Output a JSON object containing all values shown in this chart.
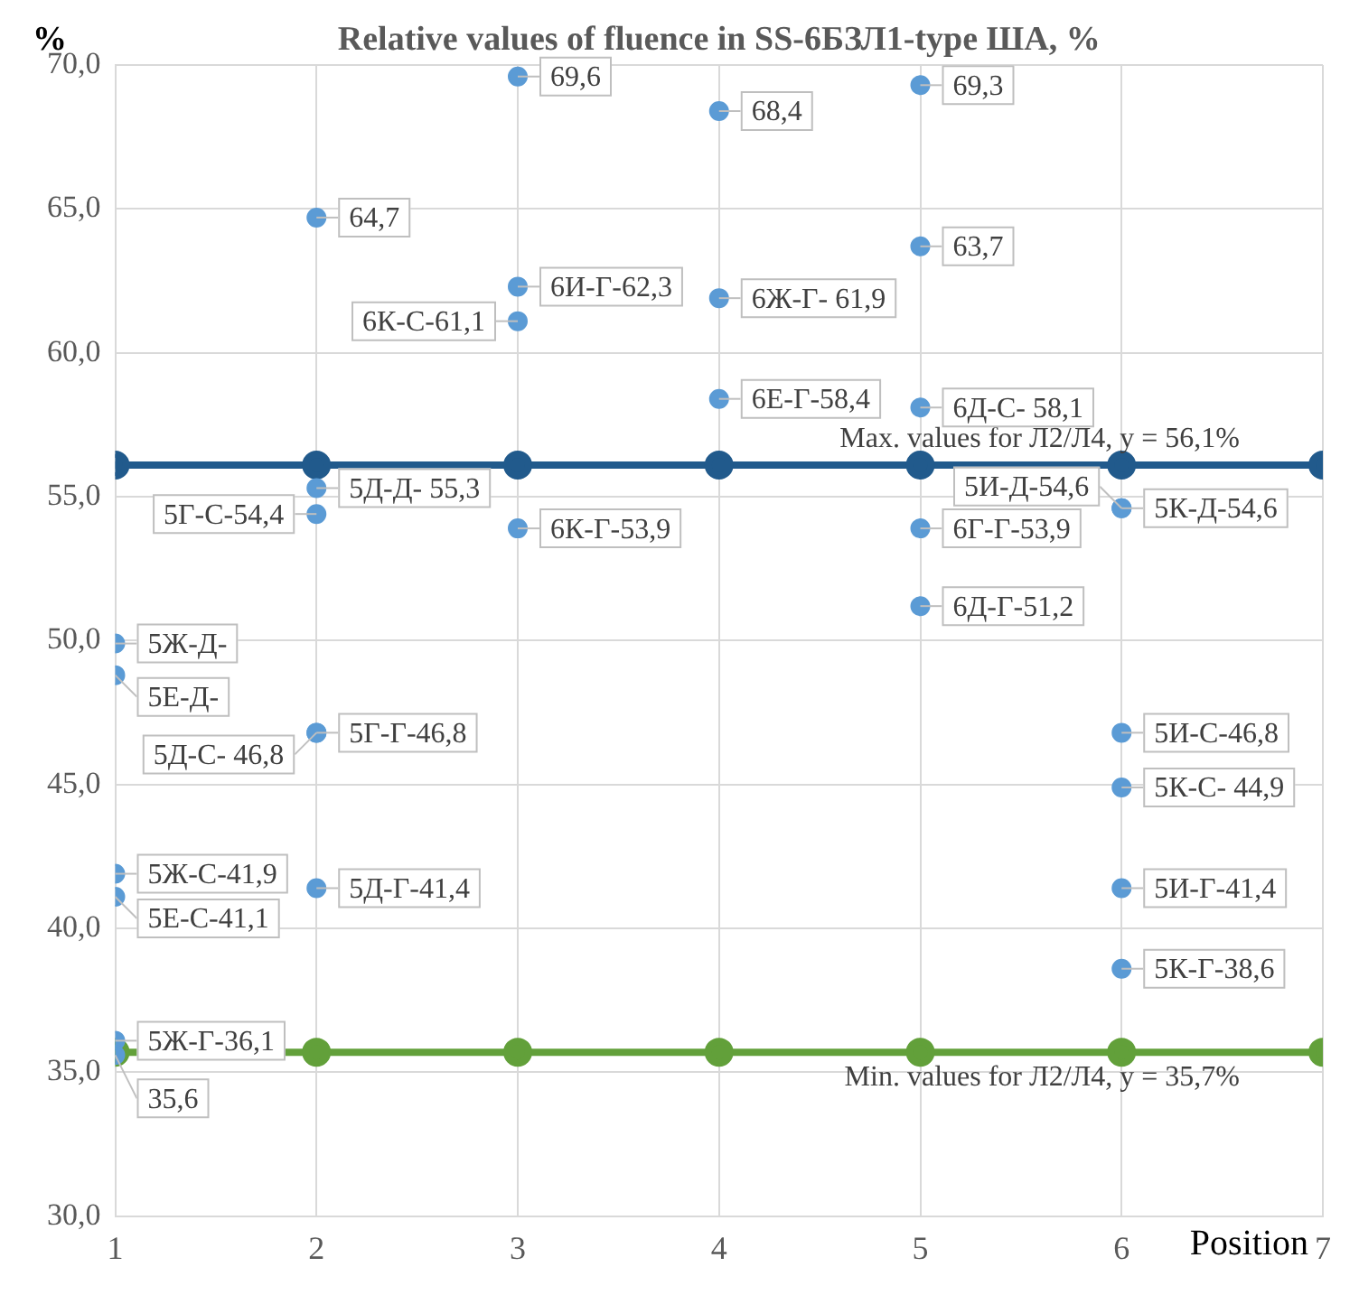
{
  "chart_data": {
    "type": "scatter",
    "title": "Relative values of fluence in SS-6БЗЛ1-type ША, %",
    "xlabel": "Position",
    "ylabel": "%",
    "xlim": [
      1,
      7
    ],
    "xticks": [
      1,
      2,
      3,
      4,
      5,
      6,
      7
    ],
    "ylim": [
      30,
      70
    ],
    "yticks": [
      {
        "value": 30,
        "label": "30,0"
      },
      {
        "value": 35,
        "label": "35,0"
      },
      {
        "value": 40,
        "label": "40,0"
      },
      {
        "value": 45,
        "label": "45,0"
      },
      {
        "value": 50,
        "label": "50,0"
      },
      {
        "value": 55,
        "label": "55,0"
      },
      {
        "value": 60,
        "label": "60,0"
      },
      {
        "value": 65,
        "label": "65,0"
      },
      {
        "value": 70,
        "label": "70,0"
      }
    ],
    "grid": true,
    "legend": false,
    "marker": "circle",
    "annotations": [
      {
        "text": "5Ж-Д-",
        "x": 1,
        "y": 49.9
      },
      {
        "text": "5Е-Д-",
        "x": 1,
        "y": 48.8
      }
    ],
    "series": [
      {
        "type": "scatter",
        "color": "#5b9bd5",
        "x": [
          1,
          1,
          1,
          1,
          1,
          1,
          2,
          2,
          2,
          2,
          2,
          2,
          3,
          3,
          3,
          3,
          4,
          4,
          4,
          5,
          5,
          5,
          5,
          5,
          6,
          6,
          6,
          6,
          6,
          6
        ],
        "values": [
          49.9,
          48.8,
          41.9,
          41.1,
          36.1,
          35.6,
          64.7,
          55.3,
          54.4,
          46.8,
          46.8,
          41.4,
          69.6,
          62.3,
          61.1,
          53.9,
          68.4,
          61.9,
          58.4,
          69.3,
          63.7,
          58.1,
          53.9,
          51.2,
          54.6,
          54.6,
          46.8,
          44.9,
          41.4,
          38.6
        ],
        "value_labels": [
          null,
          null,
          "5Ж-С-41,9",
          "5Е-С-41,1",
          "5Ж-Г-36,1",
          "35,6",
          "64,7",
          "5Д-Д- 55,3",
          "5Г-С-54,4",
          "5Г-Г-46,8",
          "5Д-С- 46,8",
          "5Д-Г-41,4",
          "69,6",
          "6И-Г-62,3",
          "6К-С-61,1",
          "6К-Г-53,9",
          "68,4",
          "6Ж-Г- 61,9",
          "6Е-Г-58,4",
          "69,3",
          "63,7",
          "6Д-С- 58,1",
          "6Г-Г-53,9",
          "6Д-Г-51,2",
          "5К-Д-54,6",
          "5И-Д-54,6",
          "5И-С-46,8",
          "5К-С- 44,9",
          "5И-Г-41,4",
          "5К-Г-38,6"
        ]
      },
      {
        "type": "line",
        "name": "Max. values for Л2/Л4, y = 56,1%",
        "color": "#215a8c",
        "x": [
          1,
          2,
          3,
          4,
          5,
          6,
          7
        ],
        "values": [
          56.1,
          56.1,
          56.1,
          56.1,
          56.1,
          56.1,
          56.1
        ]
      },
      {
        "type": "line",
        "name": "Min. values for Л2/Л4, y = 35,7%",
        "color": "#62a03a",
        "x": [
          1,
          2,
          3,
          4,
          5,
          6,
          7
        ],
        "values": [
          35.7,
          35.7,
          35.7,
          35.7,
          35.7,
          35.7,
          35.7
        ]
      }
    ]
  }
}
